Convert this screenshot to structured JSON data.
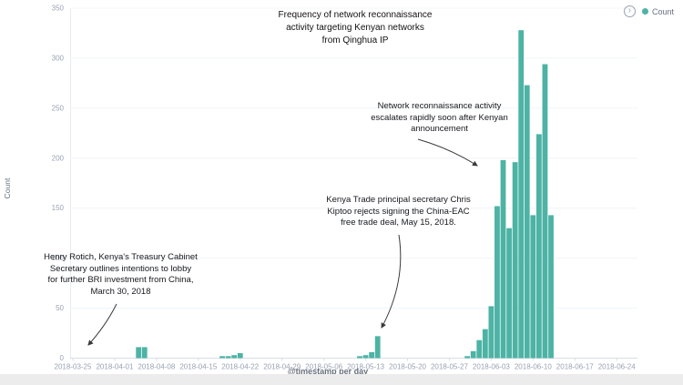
{
  "legend": {
    "toggle_icon": "›",
    "label": "Count"
  },
  "chart_data": {
    "type": "bar",
    "title": "Frequency of network reconnaissance\nactivity targeting Kenyan networks\nfrom Qinghua IP",
    "xlabel": "@timestamp per day",
    "ylabel": "Count",
    "ylim": [
      0,
      350
    ],
    "y_ticks": [
      0,
      50,
      100,
      150,
      200,
      250,
      300,
      350
    ],
    "x_ticks": [
      "2018-03-25",
      "2018-04-01",
      "2018-04-08",
      "2018-04-15",
      "2018-04-22",
      "2018-04-29",
      "2018-05-06",
      "2018-05-13",
      "2018-05-20",
      "2018-05-27",
      "2018-06-03",
      "2018-06-10",
      "2018-06-17",
      "2018-06-24"
    ],
    "grid": "horizontal",
    "legend_position": "top-right",
    "bar_color": "#4db3a4",
    "series": [
      {
        "name": "Count",
        "points": [
          {
            "date": "2018-04-05",
            "count": 11
          },
          {
            "date": "2018-04-06",
            "count": 11
          },
          {
            "date": "2018-04-19",
            "count": 2
          },
          {
            "date": "2018-04-20",
            "count": 2
          },
          {
            "date": "2018-04-21",
            "count": 3
          },
          {
            "date": "2018-04-22",
            "count": 5
          },
          {
            "date": "2018-05-12",
            "count": 2
          },
          {
            "date": "2018-05-13",
            "count": 3
          },
          {
            "date": "2018-05-14",
            "count": 6
          },
          {
            "date": "2018-05-15",
            "count": 22
          },
          {
            "date": "2018-05-30",
            "count": 2
          },
          {
            "date": "2018-05-31",
            "count": 7
          },
          {
            "date": "2018-06-01",
            "count": 18
          },
          {
            "date": "2018-06-02",
            "count": 29
          },
          {
            "date": "2018-06-03",
            "count": 52
          },
          {
            "date": "2018-06-04",
            "count": 152
          },
          {
            "date": "2018-06-05",
            "count": 198
          },
          {
            "date": "2018-06-06",
            "count": 130
          },
          {
            "date": "2018-06-07",
            "count": 196
          },
          {
            "date": "2018-06-08",
            "count": 328
          },
          {
            "date": "2018-06-09",
            "count": 273
          },
          {
            "date": "2018-06-10",
            "count": 143
          },
          {
            "date": "2018-06-11",
            "count": 224
          },
          {
            "date": "2018-06-12",
            "count": 294
          },
          {
            "date": "2018-06-13",
            "count": 143
          }
        ]
      }
    ]
  },
  "annotations": [
    {
      "id": "rotich",
      "text": "Henry Rotich, Kenya's Treasury Cabinet\nSecretary outlines intentions to lobby\nfor further BRI investment from China,\nMarch 30, 2018"
    },
    {
      "id": "kiptoo",
      "text": "Kenya Trade principal secretary Chris\nKiptoo rejects signing the China-EAC\nfree trade deal, May 15, 2018."
    },
    {
      "id": "escalate",
      "text": "Network reconnaissance activity\nescalates rapidly soon after Kenyan\nannouncement"
    }
  ]
}
